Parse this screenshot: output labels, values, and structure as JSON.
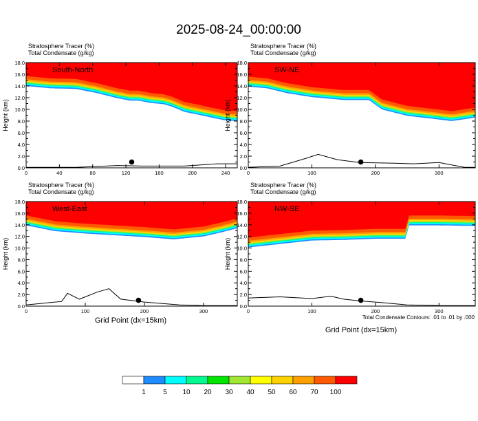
{
  "title": "2025-08-24_00:00:00",
  "header_lines": [
    "Stratosphere Tracer    (%)",
    "Total Condensate    (g/kg)"
  ],
  "ylabel": "Height (km)",
  "xlabel": "Grid Point (dx=15km)",
  "contour_note": "Total Condensate Contours: .01 to .01 by .000",
  "colors": [
    "#ffffff",
    "#1e8cff",
    "#00ffff",
    "#00fa90",
    "#00e600",
    "#a0e632",
    "#ffff00",
    "#ffd200",
    "#ffa000",
    "#ff5a00",
    "#ff0000"
  ],
  "colorbar_labels": [
    "1",
    "5",
    "10",
    "20",
    "30",
    "40",
    "50",
    "60",
    "70",
    "100"
  ],
  "chart_data": [
    {
      "type": "heatmap",
      "panel": "South-North",
      "xlim": [
        0,
        254
      ],
      "ylim": [
        0,
        18
      ],
      "xticks": [
        "0",
        "40",
        "80",
        "120",
        "160",
        "200",
        "240"
      ],
      "xtick_values": [
        0,
        40,
        80,
        120,
        160,
        200,
        240
      ],
      "yticks": [
        "0.0",
        "2.0",
        "4.0",
        "6.0",
        "8.0",
        "10.0",
        "12.0",
        "14.0",
        "16.0",
        "18.0"
      ],
      "tropopause_km": [
        [
          0,
          15.7
        ],
        [
          30,
          15.3
        ],
        [
          60,
          15.2
        ],
        [
          85,
          14.5
        ],
        [
          110,
          13.6
        ],
        [
          125,
          13.2
        ],
        [
          135,
          13.2
        ],
        [
          150,
          12.8
        ],
        [
          165,
          12.6
        ],
        [
          175,
          12.2
        ],
        [
          190,
          11.3
        ],
        [
          210,
          10.7
        ],
        [
          240,
          9.8
        ],
        [
          254,
          9.7
        ]
      ],
      "terrain_km": [
        [
          0,
          0.1
        ],
        [
          60,
          0.1
        ],
        [
          110,
          0.4
        ],
        [
          140,
          0.3
        ],
        [
          190,
          0.3
        ],
        [
          230,
          0.7
        ],
        [
          254,
          0.7
        ]
      ],
      "marker_x": 127
    },
    {
      "type": "heatmap",
      "panel": "SW-NE",
      "xlim": [
        0,
        357
      ],
      "ylim": [
        0,
        18
      ],
      "xticks": [
        "0",
        "100",
        "200",
        "300"
      ],
      "xtick_values": [
        0,
        100,
        200,
        300
      ],
      "yticks": [
        "0.0",
        "2.0",
        "4.0",
        "6.0",
        "8.0",
        "10.0",
        "12.0",
        "14.0",
        "16.0",
        "18.0"
      ],
      "tropopause_km": [
        [
          0,
          15.6
        ],
        [
          30,
          15.3
        ],
        [
          60,
          14.5
        ],
        [
          100,
          13.8
        ],
        [
          150,
          13.3
        ],
        [
          190,
          13.3
        ],
        [
          210,
          11.7
        ],
        [
          250,
          10.6
        ],
        [
          290,
          10.1
        ],
        [
          320,
          9.7
        ],
        [
          357,
          10.3
        ]
      ],
      "terrain_km": [
        [
          0,
          0.1
        ],
        [
          50,
          0.3
        ],
        [
          90,
          1.6
        ],
        [
          110,
          2.3
        ],
        [
          140,
          1.4
        ],
        [
          175,
          0.9
        ],
        [
          230,
          0.8
        ],
        [
          260,
          0.7
        ],
        [
          300,
          0.9
        ],
        [
          340,
          0.1
        ],
        [
          357,
          0.1
        ]
      ],
      "marker_x": 177
    },
    {
      "type": "heatmap",
      "panel": "West-East",
      "xlim": [
        0,
        357
      ],
      "ylim": [
        0,
        18
      ],
      "xticks": [
        "0",
        "100",
        "200",
        "300"
      ],
      "xtick_values": [
        0,
        100,
        200,
        300
      ],
      "yticks": [
        "0.0",
        "2.0",
        "4.0",
        "6.0",
        "8.0",
        "10.0",
        "12.0",
        "14.0",
        "16.0",
        "18.0"
      ],
      "tropopause_km": [
        [
          0,
          15.6
        ],
        [
          50,
          14.6
        ],
        [
          100,
          14.2
        ],
        [
          150,
          13.9
        ],
        [
          200,
          13.6
        ],
        [
          250,
          13.2
        ],
        [
          300,
          13.7
        ],
        [
          330,
          14.4
        ],
        [
          357,
          15.1
        ]
      ],
      "terrain_km": [
        [
          0,
          0.2
        ],
        [
          40,
          0.6
        ],
        [
          60,
          0.8
        ],
        [
          70,
          2.2
        ],
        [
          90,
          1.2
        ],
        [
          120,
          2.4
        ],
        [
          140,
          3.0
        ],
        [
          160,
          1.2
        ],
        [
          200,
          0.7
        ],
        [
          260,
          0.2
        ],
        [
          300,
          0.1
        ],
        [
          357,
          0.1
        ]
      ],
      "marker_x": 190
    },
    {
      "type": "heatmap",
      "panel": "NW-SE",
      "xlim": [
        0,
        357
      ],
      "ylim": [
        0,
        18
      ],
      "xticks": [
        "0",
        "100",
        "200",
        "300"
      ],
      "xtick_values": [
        0,
        100,
        200,
        300
      ],
      "yticks": [
        "0.0",
        "2.0",
        "4.0",
        "6.0",
        "8.0",
        "10.0",
        "12.0",
        "14.0",
        "16.0",
        "18.0"
      ],
      "tropopause_km": [
        [
          0,
          11.8
        ],
        [
          50,
          12.4
        ],
        [
          100,
          13.0
        ],
        [
          150,
          13.1
        ],
        [
          200,
          13.3
        ],
        [
          248,
          13.3
        ],
        [
          252,
          15.6
        ],
        [
          300,
          15.6
        ],
        [
          357,
          15.5
        ]
      ],
      "terrain_km": [
        [
          0,
          1.4
        ],
        [
          50,
          1.6
        ],
        [
          100,
          1.3
        ],
        [
          130,
          1.7
        ],
        [
          150,
          1.2
        ],
        [
          175,
          0.9
        ],
        [
          210,
          0.6
        ],
        [
          250,
          0.2
        ],
        [
          300,
          0.1
        ],
        [
          357,
          0.1
        ]
      ],
      "marker_x": 177
    }
  ]
}
